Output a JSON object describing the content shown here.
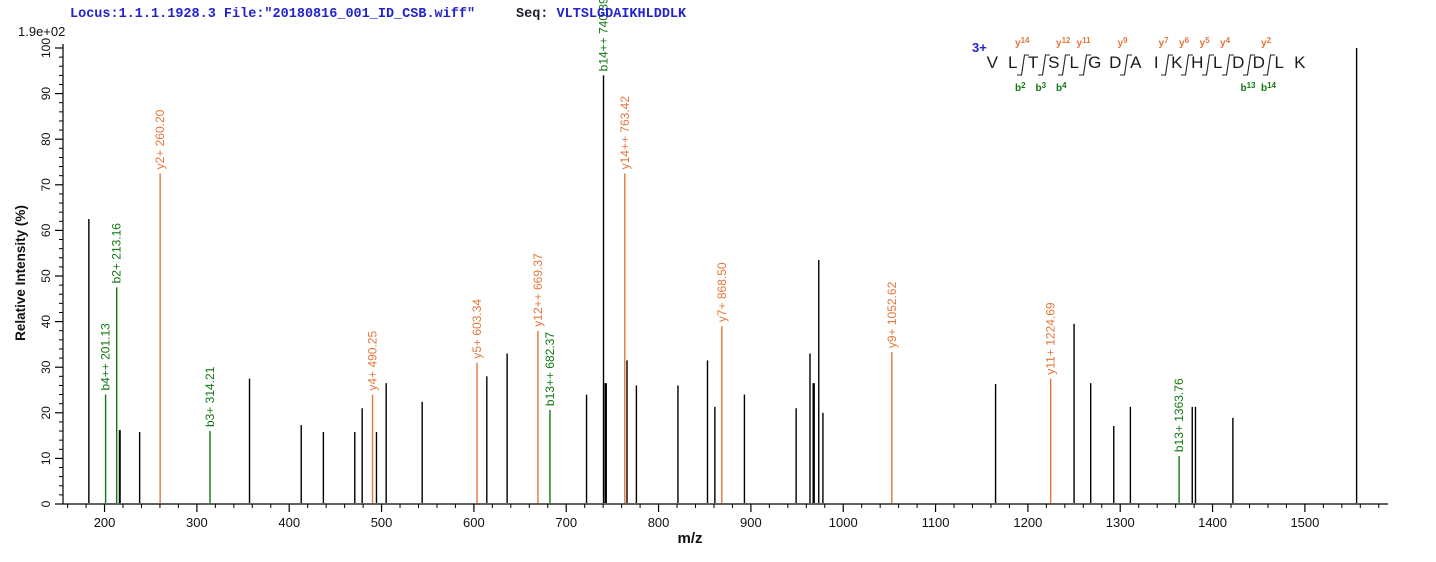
{
  "header": {
    "locus_text": "Locus:1.1.1.1928.3 File:\"20180816_001_ID_CSB.wiff\"",
    "seq_label": "Seq: ",
    "sequence": "VLTSLGDAIKHLDDLK",
    "max_intensity_label": "1.9e+02"
  },
  "annotation": {
    "charge_label": "3+",
    "residues": [
      "V",
      "L",
      "T",
      "S",
      "L",
      "G",
      "D",
      "A",
      "I",
      "K",
      "H",
      "L",
      "D",
      "D",
      "L",
      "K"
    ],
    "cleavages": [
      {
        "after": 2,
        "y": "y14",
        "b": "b2"
      },
      {
        "after": 3,
        "b": "b3"
      },
      {
        "after": 4,
        "y": "y12",
        "b": "b4"
      },
      {
        "after": 5,
        "y": "y11"
      },
      {
        "after": 7,
        "y": "y9"
      },
      {
        "after": 9,
        "y": "y7"
      },
      {
        "after": 10,
        "y": "y6"
      },
      {
        "after": 11,
        "y": "y5"
      },
      {
        "after": 12,
        "y": "y4"
      },
      {
        "after": 13,
        "b": "b13"
      },
      {
        "after": 14,
        "y": "y2",
        "b": "b14"
      }
    ]
  },
  "colors": {
    "y_ion": "#e4763b",
    "b_ion": "#117711",
    "peak": "#000000",
    "header_blue": "#2323cc",
    "axis": "#000000"
  },
  "chart_data": {
    "type": "bar",
    "subtype": "ms2-stick-spectrum",
    "title": "",
    "xlabel": "m/z",
    "ylabel": "Relative  Intensity (%)",
    "xlim": [
      155,
      1590
    ],
    "ylim": [
      0,
      100
    ],
    "x_major_ticks": [
      200,
      300,
      400,
      500,
      600,
      700,
      800,
      900,
      1000,
      1100,
      1200,
      1300,
      1400,
      1500
    ],
    "x_minor_step": 20,
    "y_major_ticks": [
      0,
      10,
      20,
      30,
      40,
      50,
      60,
      70,
      80,
      90,
      100
    ],
    "y_minor_step": 2,
    "grid": false,
    "legend": "none",
    "peaks": [
      {
        "mz": 183,
        "i": 62.5
      },
      {
        "mz": 201.13,
        "i": 24,
        "ion": "b",
        "label": "b4++ 201.13"
      },
      {
        "mz": 213.16,
        "i": 47.5,
        "ion": "b",
        "label": "b2+ 213.16"
      },
      {
        "mz": 216.5,
        "i": 16.2,
        "w": 2
      },
      {
        "mz": 238,
        "i": 15.8
      },
      {
        "mz": 260.2,
        "i": 72.5,
        "ion": "y",
        "label": "y2+ 260.20"
      },
      {
        "mz": 314.21,
        "i": 16,
        "ion": "b",
        "label": "b3+ 314.21"
      },
      {
        "mz": 357,
        "i": 27.5
      },
      {
        "mz": 413,
        "i": 17.3
      },
      {
        "mz": 437,
        "i": 15.8
      },
      {
        "mz": 471,
        "i": 15.8
      },
      {
        "mz": 479,
        "i": 21
      },
      {
        "mz": 490.25,
        "i": 24,
        "ion": "y",
        "label": "y4+ 490.25"
      },
      {
        "mz": 494.5,
        "i": 15.8
      },
      {
        "mz": 505,
        "i": 26.5
      },
      {
        "mz": 544,
        "i": 22.4
      },
      {
        "mz": 603.34,
        "i": 31,
        "ion": "y",
        "label": "y5+ 603.34"
      },
      {
        "mz": 614,
        "i": 28
      },
      {
        "mz": 636,
        "i": 33
      },
      {
        "mz": 669.37,
        "i": 38,
        "ion": "y",
        "label": "y12++ 669.37"
      },
      {
        "mz": 682.37,
        "i": 20.6,
        "ion": "b",
        "label": "b13++ 682.37"
      },
      {
        "mz": 722,
        "i": 24
      },
      {
        "mz": 740.39,
        "i": 94,
        "ion": "b",
        "label": "b14++ 740.39",
        "line_black": true
      },
      {
        "mz": 742.8,
        "i": 26.5,
        "w": 2.4
      },
      {
        "mz": 763.42,
        "i": 72.5,
        "ion": "y",
        "label": "y14++ 763.42"
      },
      {
        "mz": 765.8,
        "i": 31.5
      },
      {
        "mz": 776,
        "i": 26
      },
      {
        "mz": 821,
        "i": 26
      },
      {
        "mz": 853,
        "i": 31.5
      },
      {
        "mz": 861,
        "i": 21.3
      },
      {
        "mz": 868.5,
        "i": 39,
        "ion": "y",
        "label": "y7+ 868.50"
      },
      {
        "mz": 893,
        "i": 24
      },
      {
        "mz": 949,
        "i": 21
      },
      {
        "mz": 964,
        "i": 33
      },
      {
        "mz": 968,
        "i": 26.5,
        "w": 2.4
      },
      {
        "mz": 973.5,
        "i": 53.5
      },
      {
        "mz": 978,
        "i": 20
      },
      {
        "mz": 1052.62,
        "i": 33.3,
        "ion": "y",
        "label": "y9+ 1052.62"
      },
      {
        "mz": 1165,
        "i": 26.3
      },
      {
        "mz": 1224.69,
        "i": 27.5,
        "ion": "y",
        "label": "y11+ 1224.69"
      },
      {
        "mz": 1250,
        "i": 39.5
      },
      {
        "mz": 1268,
        "i": 26.5
      },
      {
        "mz": 1293,
        "i": 17.1
      },
      {
        "mz": 1311,
        "i": 21.3
      },
      {
        "mz": 1363.76,
        "i": 10.5,
        "ion": "b",
        "label": "b13+ 1363.76"
      },
      {
        "mz": 1378,
        "i": 21.3
      },
      {
        "mz": 1381.5,
        "i": 21.3
      },
      {
        "mz": 1422,
        "i": 18.9
      },
      {
        "mz": 1556,
        "i": 100
      }
    ]
  }
}
